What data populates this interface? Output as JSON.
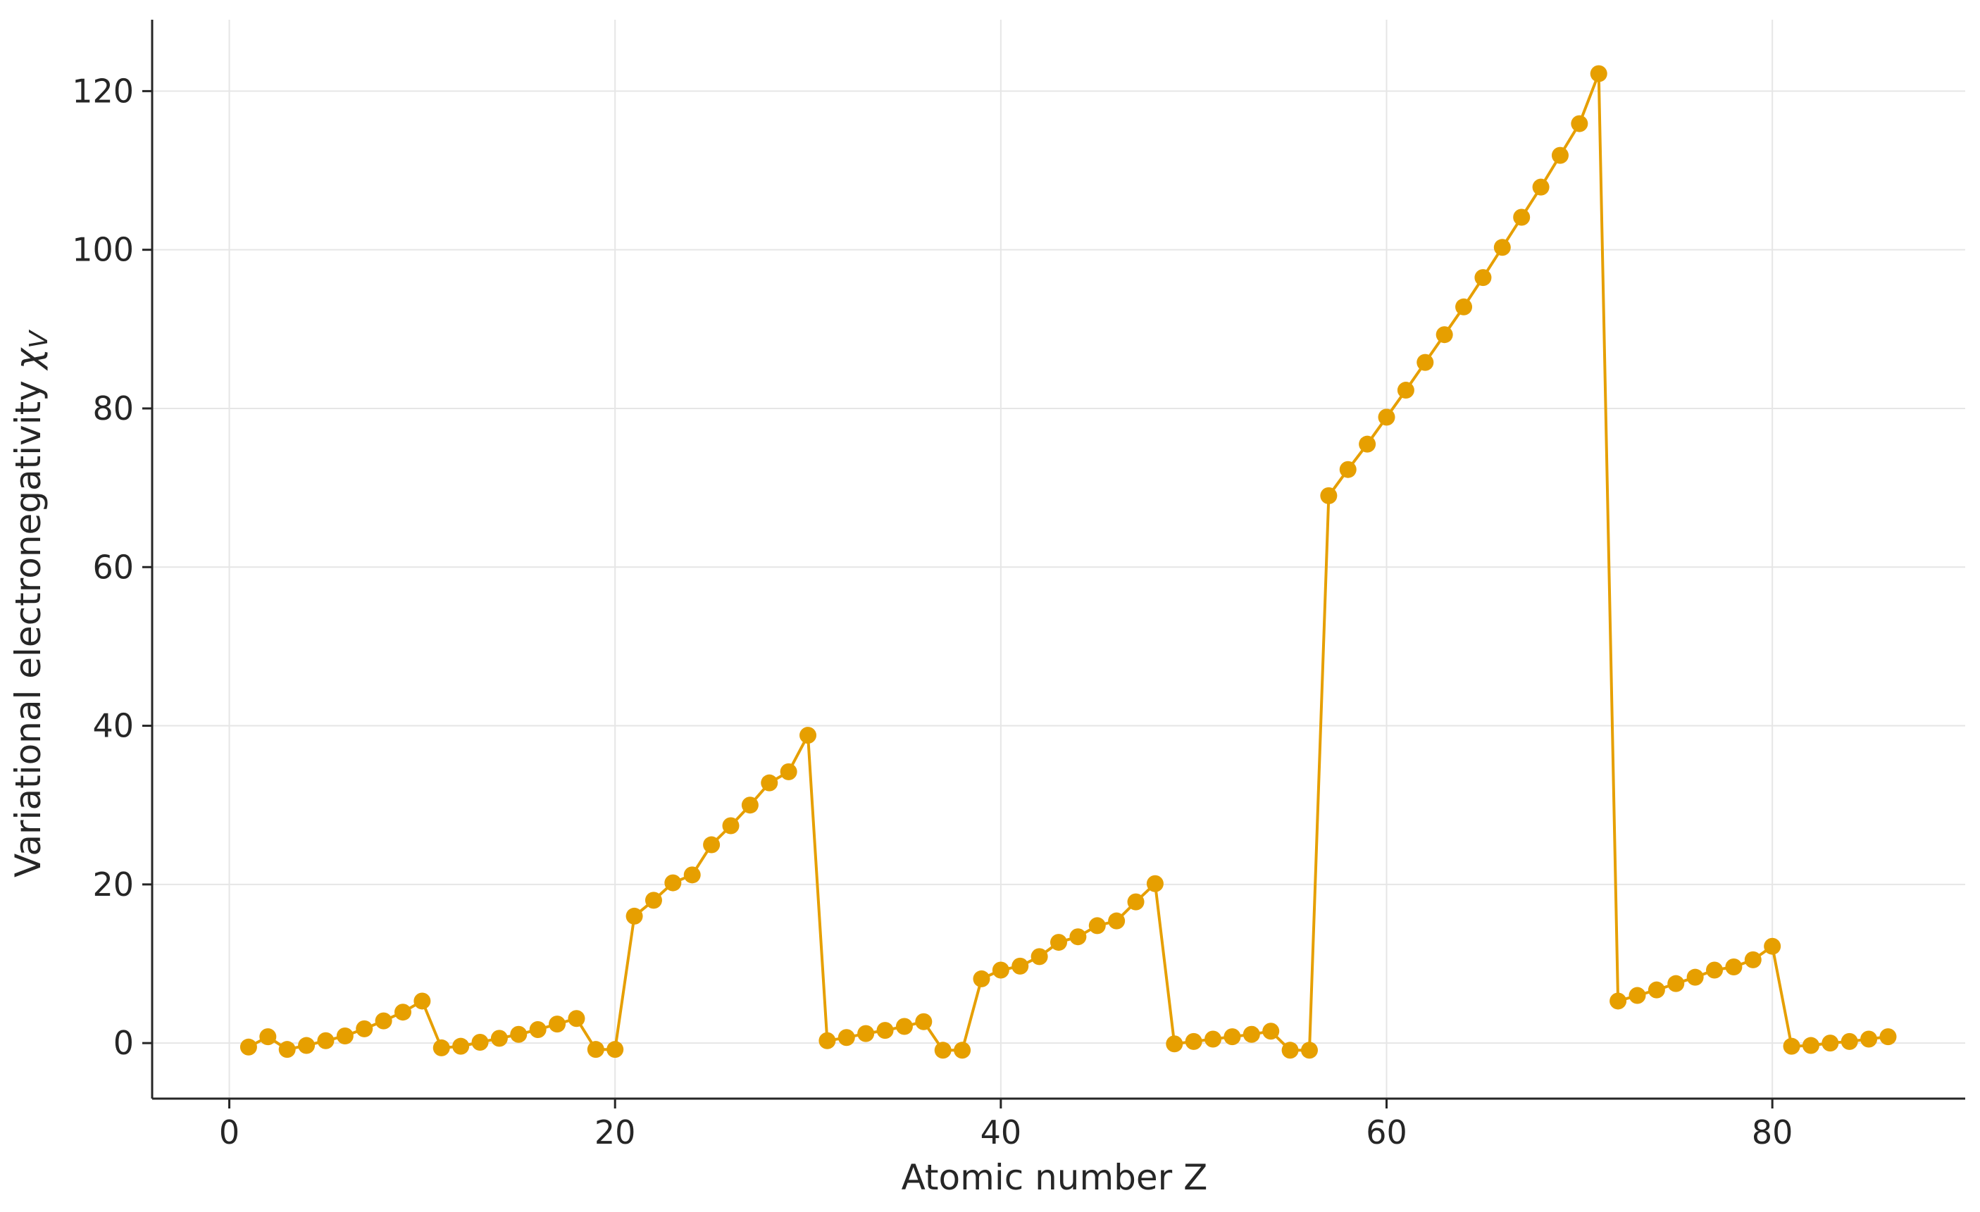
{
  "chart_data": {
    "type": "line",
    "xlabel": "Atomic number Z",
    "ylabel_text": "Variational electronegativity ",
    "ylabel_symbol": "χ",
    "ylabel_subscript": "V",
    "xlim": [
      -4,
      90
    ],
    "ylim": [
      -7,
      129
    ],
    "xticks": [
      0,
      20,
      40,
      60,
      80
    ],
    "yticks": [
      0,
      20,
      40,
      60,
      80,
      100,
      120
    ],
    "grid": true,
    "colors": {
      "series": "#E69F00",
      "grid": "#e6e6e6",
      "axis": "#262626"
    },
    "series": [
      {
        "marker": "circle",
        "x": [
          1,
          2,
          3,
          4,
          5,
          6,
          7,
          8,
          9,
          10,
          11,
          12,
          13,
          14,
          15,
          16,
          17,
          18,
          19,
          20,
          21,
          22,
          23,
          24,
          25,
          26,
          27,
          28,
          29,
          30,
          31,
          32,
          33,
          34,
          35,
          36,
          37,
          38,
          39,
          40,
          41,
          42,
          43,
          44,
          45,
          46,
          47,
          48,
          49,
          50,
          51,
          52,
          53,
          54,
          55,
          56,
          57,
          58,
          59,
          60,
          61,
          62,
          63,
          64,
          65,
          66,
          67,
          68,
          69,
          70,
          71,
          72,
          73,
          74,
          75,
          76,
          77,
          78,
          79,
          80,
          81,
          82,
          83,
          84,
          85,
          86
        ],
        "y": [
          -0.5,
          0.8,
          -0.8,
          -0.3,
          0.3,
          0.9,
          1.8,
          2.8,
          3.9,
          5.3,
          -0.6,
          -0.4,
          0.1,
          0.6,
          1.1,
          1.7,
          2.4,
          3.1,
          -0.8,
          -0.8,
          16.0,
          18.0,
          20.2,
          21.2,
          25.0,
          27.4,
          30.0,
          32.8,
          34.2,
          38.8,
          0.3,
          0.7,
          1.2,
          1.6,
          2.1,
          2.7,
          -0.9,
          -0.9,
          8.1,
          9.2,
          9.7,
          10.9,
          12.7,
          13.4,
          14.8,
          15.4,
          17.8,
          20.1,
          -0.1,
          0.2,
          0.5,
          0.8,
          1.1,
          1.5,
          -0.9,
          -0.9,
          69.0,
          72.3,
          75.5,
          78.9,
          82.3,
          85.8,
          89.3,
          92.8,
          96.5,
          100.3,
          104.1,
          107.9,
          111.9,
          115.9,
          122.2,
          5.3,
          6.0,
          6.7,
          7.5,
          8.3,
          9.2,
          9.6,
          10.5,
          12.2,
          -0.4,
          -0.3,
          0.0,
          0.2,
          0.5,
          0.8
        ]
      }
    ]
  }
}
